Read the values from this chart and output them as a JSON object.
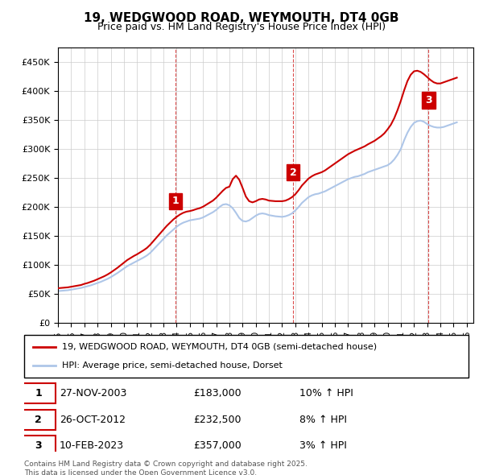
{
  "title1": "19, WEDGWOOD ROAD, WEYMOUTH, DT4 0GB",
  "title2": "Price paid vs. HM Land Registry's House Price Index (HPI)",
  "ylabel_ticks": [
    "£0",
    "£50K",
    "£100K",
    "£150K",
    "£200K",
    "£250K",
    "£300K",
    "£350K",
    "£400K",
    "£450K"
  ],
  "ytick_values": [
    0,
    50000,
    100000,
    150000,
    200000,
    250000,
    300000,
    350000,
    400000,
    450000
  ],
  "xlim": [
    1995.0,
    2026.5
  ],
  "ylim": [
    0,
    475000
  ],
  "hpi_color": "#aec6e8",
  "price_color": "#cc0000",
  "sale_color": "#cc0000",
  "grid_color": "#cccccc",
  "background_color": "#ffffff",
  "legend_label_red": "19, WEDGWOOD ROAD, WEYMOUTH, DT4 0GB (semi-detached house)",
  "legend_label_blue": "HPI: Average price, semi-detached house, Dorset",
  "sale_dates": [
    2003.9,
    2012.82,
    2023.11
  ],
  "sale_prices": [
    183000,
    232500,
    357000
  ],
  "sale_labels": [
    "1",
    "2",
    "3"
  ],
  "sale_info": [
    {
      "label": "1",
      "date": "27-NOV-2003",
      "price": "£183,000",
      "hpi": "10% ↑ HPI"
    },
    {
      "label": "2",
      "date": "26-OCT-2012",
      "price": "£232,500",
      "hpi": "8% ↑ HPI"
    },
    {
      "label": "3",
      "date": "10-FEB-2023",
      "price": "£357,000",
      "hpi": "3% ↑ HPI"
    }
  ],
  "footer": "Contains HM Land Registry data © Crown copyright and database right 2025.\nThis data is licensed under the Open Government Licence v3.0.",
  "hpi_x": [
    1995,
    1995.25,
    1995.5,
    1995.75,
    1996,
    1996.25,
    1996.5,
    1996.75,
    1997,
    1997.25,
    1997.5,
    1997.75,
    1998,
    1998.25,
    1998.5,
    1998.75,
    1999,
    1999.25,
    1999.5,
    1999.75,
    2000,
    2000.25,
    2000.5,
    2000.75,
    2001,
    2001.25,
    2001.5,
    2001.75,
    2002,
    2002.25,
    2002.5,
    2002.75,
    2003,
    2003.25,
    2003.5,
    2003.75,
    2004,
    2004.25,
    2004.5,
    2004.75,
    2005,
    2005.25,
    2005.5,
    2005.75,
    2006,
    2006.25,
    2006.5,
    2006.75,
    2007,
    2007.25,
    2007.5,
    2007.75,
    2008,
    2008.25,
    2008.5,
    2008.75,
    2009,
    2009.25,
    2009.5,
    2009.75,
    2010,
    2010.25,
    2010.5,
    2010.75,
    2011,
    2011.25,
    2011.5,
    2011.75,
    2012,
    2012.25,
    2012.5,
    2012.75,
    2013,
    2013.25,
    2013.5,
    2013.75,
    2014,
    2014.25,
    2014.5,
    2014.75,
    2015,
    2015.25,
    2015.5,
    2015.75,
    2016,
    2016.25,
    2016.5,
    2016.75,
    2017,
    2017.25,
    2017.5,
    2017.75,
    2018,
    2018.25,
    2018.5,
    2018.75,
    2019,
    2019.25,
    2019.5,
    2019.75,
    2020,
    2020.25,
    2020.5,
    2020.75,
    2021,
    2021.25,
    2021.5,
    2021.75,
    2022,
    2022.25,
    2022.5,
    2022.75,
    2023,
    2023.25,
    2023.5,
    2023.75,
    2024,
    2024.25,
    2024.5,
    2024.75,
    2025,
    2025.25
  ],
  "hpi_y": [
    55000,
    55500,
    56000,
    56500,
    57500,
    58500,
    59500,
    60500,
    62000,
    63500,
    65000,
    67000,
    69000,
    71000,
    73500,
    76000,
    79000,
    82500,
    86000,
    90000,
    94000,
    98000,
    101000,
    104000,
    107000,
    110000,
    113000,
    116500,
    121000,
    127000,
    133000,
    139000,
    145000,
    151000,
    156000,
    161000,
    166000,
    170000,
    173000,
    175000,
    177000,
    178000,
    179000,
    180000,
    182000,
    185000,
    188000,
    191000,
    195000,
    200000,
    204000,
    205000,
    203000,
    198000,
    190000,
    181000,
    176000,
    175000,
    177000,
    181000,
    185000,
    188000,
    189000,
    188000,
    186000,
    185000,
    184000,
    183500,
    183000,
    184000,
    186000,
    189000,
    194000,
    200000,
    207000,
    212000,
    217000,
    220000,
    222000,
    223000,
    225000,
    227000,
    230000,
    233000,
    236000,
    239000,
    242000,
    245000,
    248000,
    250000,
    252000,
    253000,
    255000,
    257000,
    260000,
    262000,
    264000,
    266000,
    268000,
    270000,
    272000,
    276000,
    282000,
    290000,
    300000,
    315000,
    328000,
    338000,
    345000,
    348000,
    349000,
    347000,
    343000,
    340000,
    338000,
    337000,
    337000,
    338000,
    340000,
    342000,
    344000,
    346000
  ],
  "price_x": [
    1995,
    1995.25,
    1995.5,
    1995.75,
    1996,
    1996.25,
    1996.5,
    1996.75,
    1997,
    1997.25,
    1997.5,
    1997.75,
    1998,
    1998.25,
    1998.5,
    1998.75,
    1999,
    1999.25,
    1999.5,
    1999.75,
    2000,
    2000.25,
    2000.5,
    2000.75,
    2001,
    2001.25,
    2001.5,
    2001.75,
    2002,
    2002.25,
    2002.5,
    2002.75,
    2003,
    2003.25,
    2003.5,
    2003.75,
    2004,
    2004.25,
    2004.5,
    2004.75,
    2005,
    2005.25,
    2005.5,
    2005.75,
    2006,
    2006.25,
    2006.5,
    2006.75,
    2007,
    2007.25,
    2007.5,
    2007.75,
    2008,
    2008.25,
    2008.5,
    2008.75,
    2009,
    2009.25,
    2009.5,
    2009.75,
    2010,
    2010.25,
    2010.5,
    2010.75,
    2011,
    2011.25,
    2011.5,
    2011.75,
    2012,
    2012.25,
    2012.5,
    2012.75,
    2013,
    2013.25,
    2013.5,
    2013.75,
    2014,
    2014.25,
    2014.5,
    2014.75,
    2015,
    2015.25,
    2015.5,
    2015.75,
    2016,
    2016.25,
    2016.5,
    2016.75,
    2017,
    2017.25,
    2017.5,
    2017.75,
    2018,
    2018.25,
    2018.5,
    2018.75,
    2019,
    2019.25,
    2019.5,
    2019.75,
    2020,
    2020.25,
    2020.5,
    2020.75,
    2021,
    2021.25,
    2021.5,
    2021.75,
    2022,
    2022.25,
    2022.5,
    2022.75,
    2023,
    2023.25,
    2023.5,
    2023.75,
    2024,
    2024.25,
    2024.5,
    2024.75,
    2025,
    2025.25
  ],
  "price_y": [
    60000,
    60500,
    61000,
    61500,
    62500,
    63500,
    64500,
    65500,
    67500,
    69000,
    71000,
    73000,
    75500,
    78000,
    80500,
    83500,
    87000,
    91000,
    95000,
    99500,
    104000,
    108500,
    112000,
    115500,
    118500,
    122000,
    125500,
    129500,
    135000,
    141500,
    148000,
    154500,
    161000,
    167500,
    173000,
    178500,
    183000,
    187000,
    190000,
    192000,
    193000,
    194500,
    196500,
    198000,
    200500,
    204000,
    207500,
    211000,
    216000,
    222000,
    228000,
    233000,
    235000,
    248000,
    254000,
    247000,
    233000,
    218000,
    210000,
    208000,
    210000,
    213000,
    214000,
    213000,
    211000,
    210500,
    210000,
    210000,
    210000,
    211000,
    213500,
    217000,
    222000,
    229000,
    237000,
    243000,
    249000,
    253000,
    256000,
    258000,
    260000,
    263000,
    267000,
    271000,
    275000,
    279000,
    283000,
    287000,
    291000,
    294000,
    297000,
    299500,
    302000,
    304500,
    308000,
    311000,
    314000,
    318000,
    322000,
    327000,
    334000,
    342000,
    353000,
    367000,
    383000,
    401000,
    417000,
    428000,
    434000,
    435000,
    433000,
    429000,
    424000,
    419000,
    415000,
    413000,
    413000,
    415000,
    417000,
    419000,
    421000,
    423000
  ]
}
